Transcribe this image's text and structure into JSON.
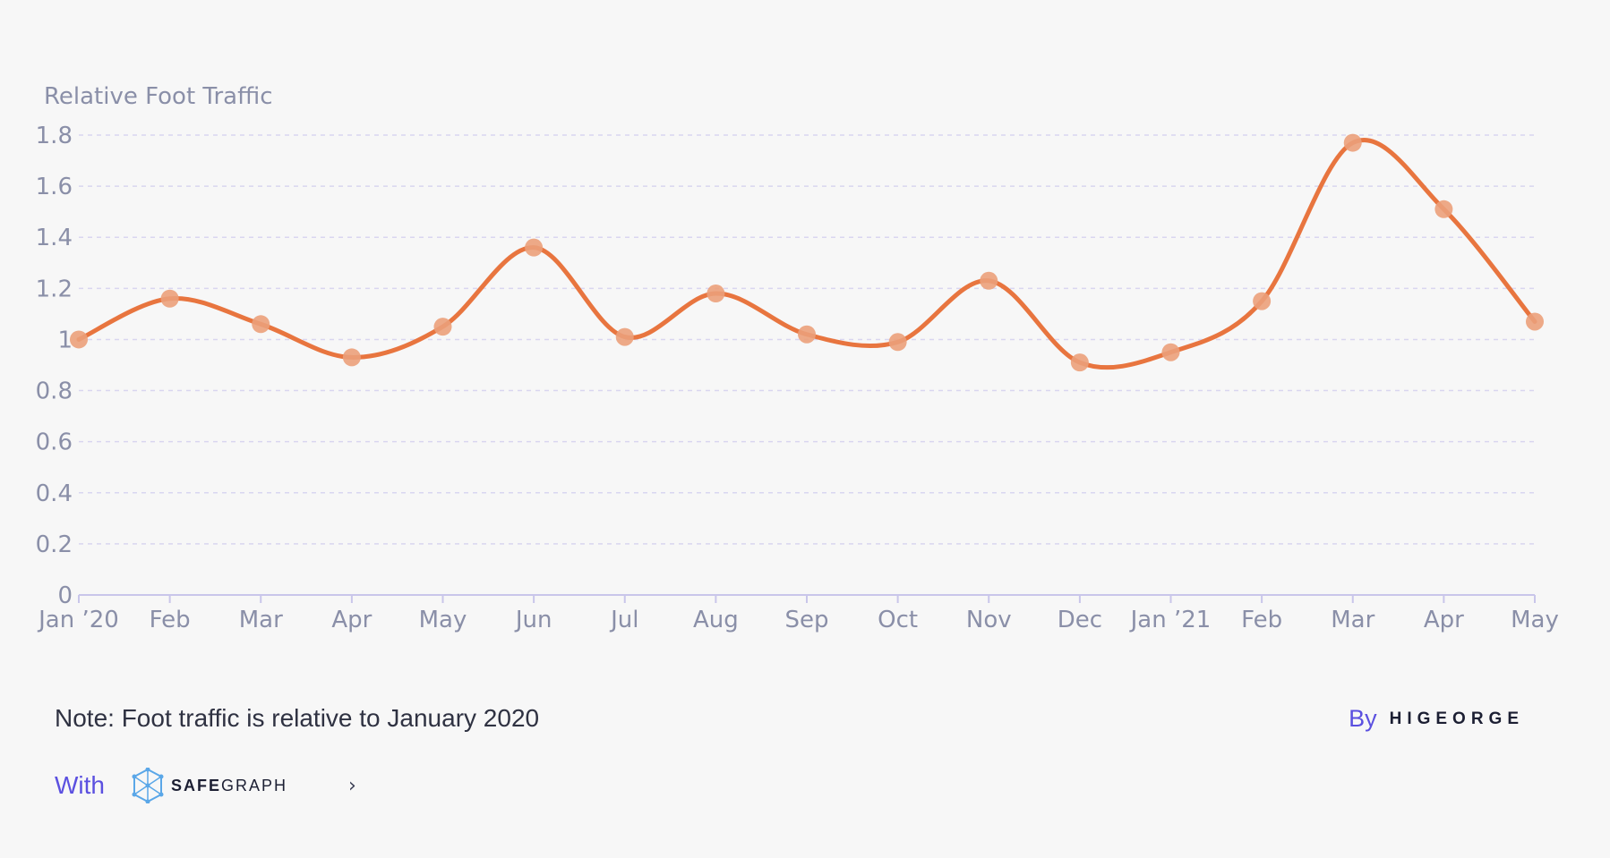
{
  "chart_data": {
    "type": "line",
    "ylabel": "Relative Foot Traffic",
    "categories": [
      "Jan ’20",
      "Feb",
      "Mar",
      "Apr",
      "May",
      "Jun",
      "Jul",
      "Aug",
      "Sep",
      "Oct",
      "Nov",
      "Dec",
      "Jan ’21",
      "Feb",
      "Mar",
      "Apr",
      "May"
    ],
    "series": [
      {
        "values": [
          1.0,
          1.16,
          1.06,
          0.93,
          1.05,
          1.36,
          1.01,
          1.18,
          1.02,
          0.99,
          1.23,
          0.91,
          0.95,
          1.15,
          1.77,
          1.51,
          1.07
        ],
        "color": "#e8753f"
      }
    ],
    "yticks": [
      "0",
      "0.2",
      "0.4",
      "0.6",
      "0.8",
      "1",
      "1.2",
      "1.4",
      "1.6",
      "1.8"
    ],
    "ylim": [
      0,
      1.8
    ],
    "grid": true,
    "colors": {
      "line": "#e8753f",
      "point": "#eba07a",
      "grid": "#d9d6f0",
      "axis": "#c9c6ea",
      "label": "#8a8fa8"
    }
  },
  "footer": {
    "note": "Note: Foot traffic is relative to January 2020",
    "by_label": "By",
    "by_brand": "HIGEORGE",
    "with_label": "With",
    "with_brand_bold": "SAFE",
    "with_brand_rest": "GRAPH",
    "with_icon": "safegraph-logo-icon",
    "link_icon": "chevron-right-icon"
  }
}
